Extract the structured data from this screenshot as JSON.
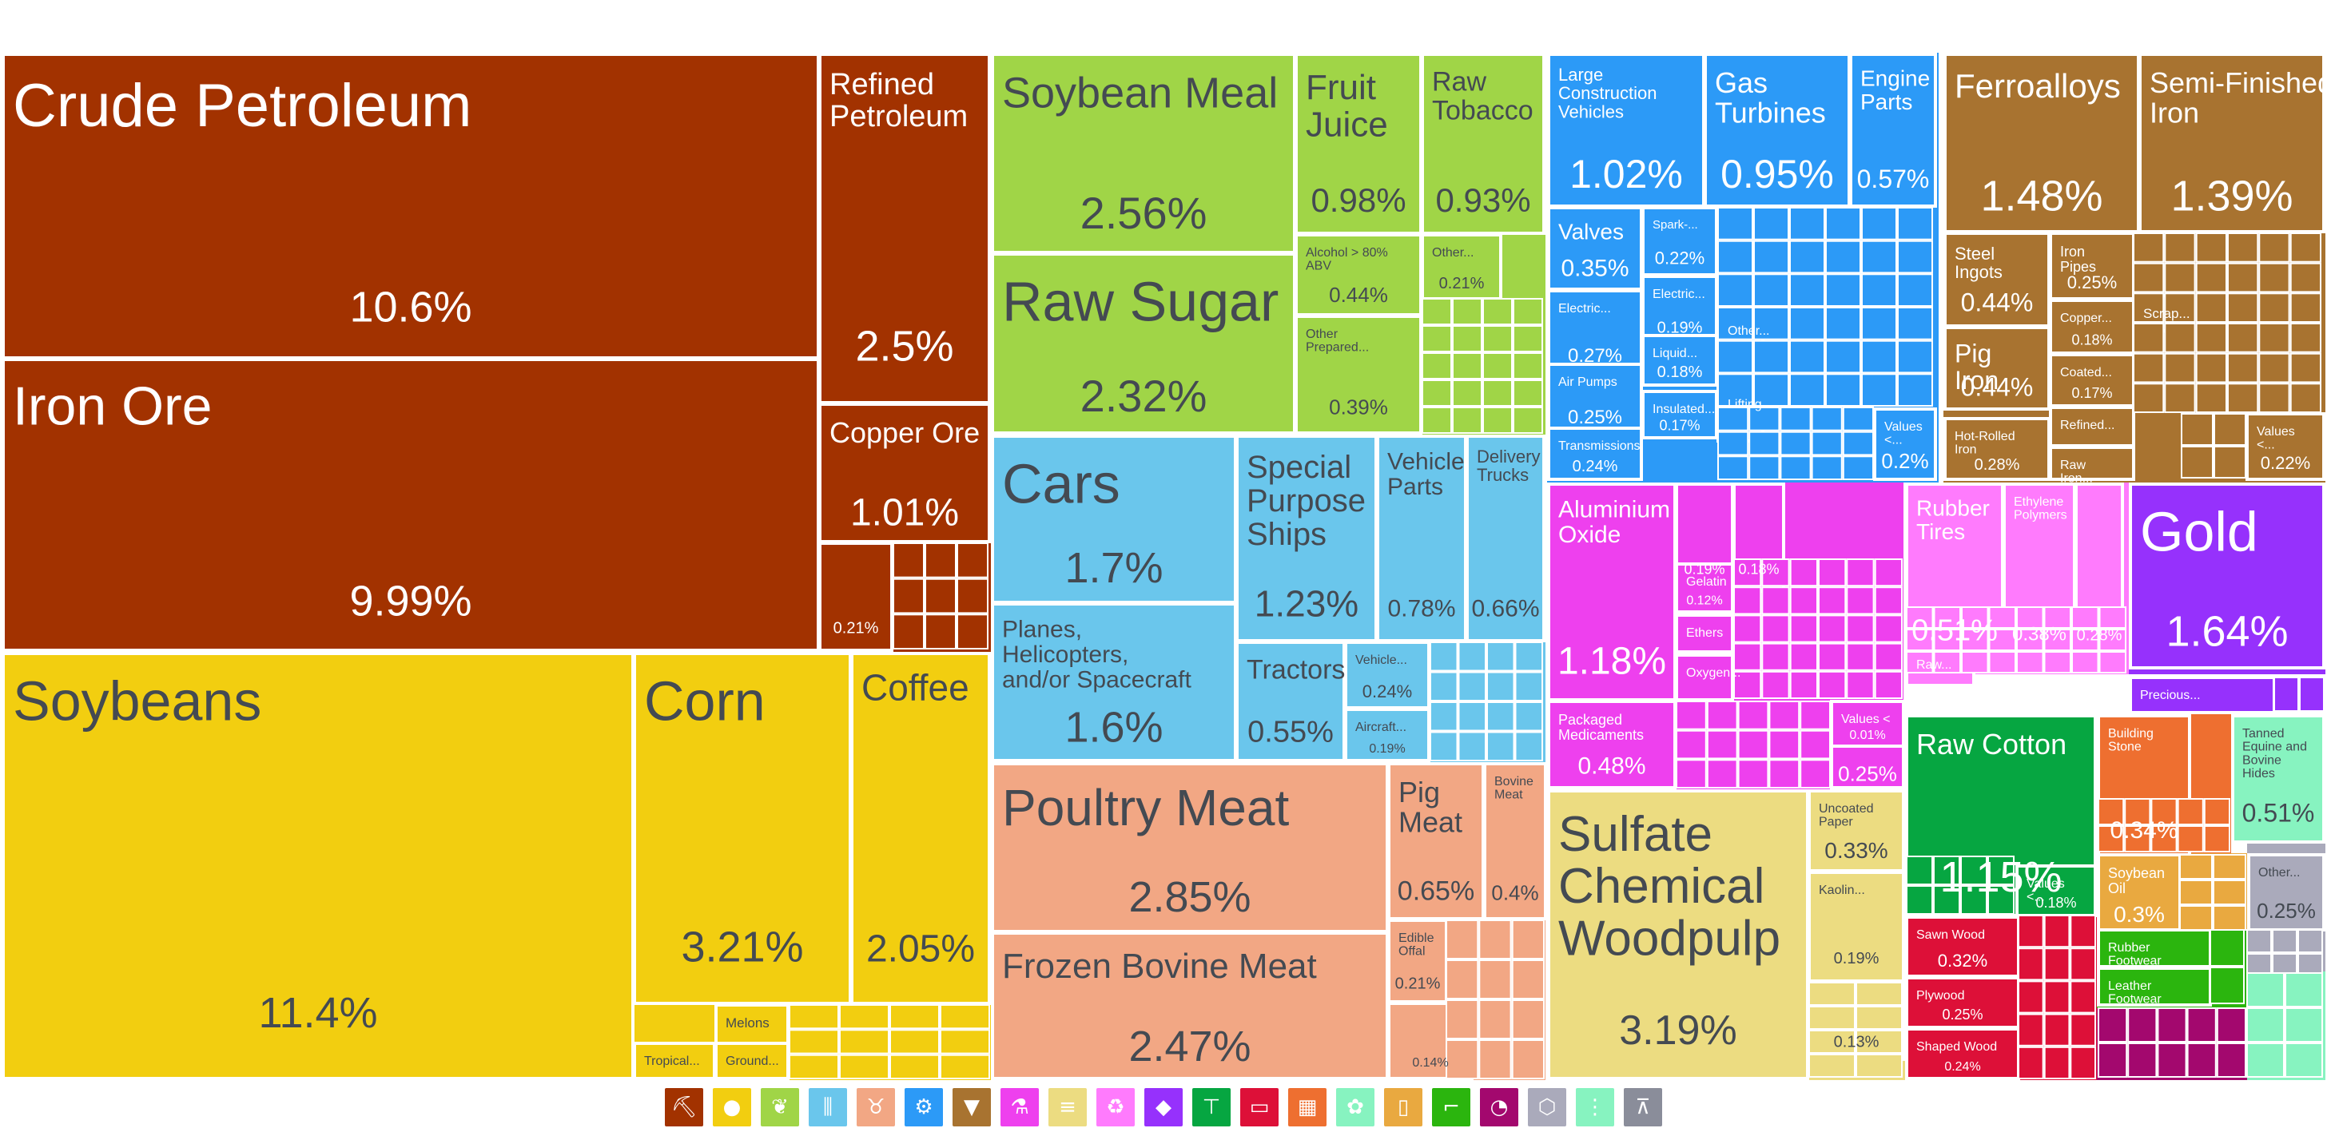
{
  "chart_data": {
    "type": "treemap",
    "title": "",
    "colors": {
      "minerals": "#a23200",
      "vegetable": "#f2ce10",
      "foodstuffs": "#a0d547",
      "transportation": "#6ac6ec",
      "animal": "#f2a784",
      "machines": "#2c9af7",
      "metals": "#a87330",
      "chemicals": "#ee40ee",
      "paper": "#ecdc81",
      "plastics": "#ff7bfd",
      "precious": "#9631fc",
      "textiles": "#06a641",
      "instruments": "#dd1038",
      "stone": "#ee6f30",
      "animal_hides": "#87f3c0",
      "misc": "#aaaabb",
      "oils": "#e9a940",
      "footwear": "#2bb50e",
      "wood": "#a3086e",
      "arts": "#8a8d9a",
      "weapons": "#8f8d9a"
    },
    "tiles": [
      {
        "name": "Crude Petroleum",
        "value": "10.6%",
        "group": "minerals"
      },
      {
        "name": "Iron Ore",
        "value": "9.99%",
        "group": "minerals"
      },
      {
        "name": "Refined Petroleum",
        "value": "2.5%",
        "group": "minerals"
      },
      {
        "name": "Copper Ore",
        "value": "1.01%",
        "group": "minerals"
      },
      {
        "name": "",
        "value": "0.21%",
        "group": "minerals"
      },
      {
        "name": "Soybeans",
        "value": "11.4%",
        "group": "vegetable"
      },
      {
        "name": "Corn",
        "value": "3.21%",
        "group": "vegetable"
      },
      {
        "name": "Coffee",
        "value": "2.05%",
        "group": "vegetable"
      },
      {
        "name": "Melons",
        "value": "",
        "group": "vegetable"
      },
      {
        "name": "Tropical...",
        "value": "",
        "group": "vegetable"
      },
      {
        "name": "Ground...",
        "value": "",
        "group": "vegetable"
      },
      {
        "name": "Soybean Meal",
        "value": "2.56%",
        "group": "foodstuffs"
      },
      {
        "name": "Raw Sugar",
        "value": "2.32%",
        "group": "foodstuffs"
      },
      {
        "name": "Fruit Juice",
        "value": "0.98%",
        "group": "foodstuffs"
      },
      {
        "name": "Raw Tobacco",
        "value": "0.93%",
        "group": "foodstuffs"
      },
      {
        "name": "Alcohol > 80% ABV",
        "value": "0.44%",
        "group": "foodstuffs"
      },
      {
        "name": "Other...",
        "value": "0.21%",
        "group": "foodstuffs"
      },
      {
        "name": "Other Prepared...",
        "value": "0.39%",
        "group": "foodstuffs"
      },
      {
        "name": "Cars",
        "value": "1.7%",
        "group": "transportation"
      },
      {
        "name": "Planes, Helicopters, and/or Spacecraft",
        "value": "1.6%",
        "group": "transportation"
      },
      {
        "name": "Special Purpose Ships",
        "value": "1.23%",
        "group": "transportation"
      },
      {
        "name": "Vehicle Parts",
        "value": "0.78%",
        "group": "transportation"
      },
      {
        "name": "Delivery Trucks",
        "value": "0.66%",
        "group": "transportation"
      },
      {
        "name": "Tractors",
        "value": "0.55%",
        "group": "transportation"
      },
      {
        "name": "Vehicle...",
        "value": "0.24%",
        "group": "transportation"
      },
      {
        "name": "Aircraft...",
        "value": "0.19%",
        "group": "transportation"
      },
      {
        "name": "Poultry Meat",
        "value": "2.85%",
        "group": "animal"
      },
      {
        "name": "Frozen Bovine Meat",
        "value": "2.47%",
        "group": "animal"
      },
      {
        "name": "Pig Meat",
        "value": "0.65%",
        "group": "animal"
      },
      {
        "name": "Bovine Meat",
        "value": "0.4%",
        "group": "animal"
      },
      {
        "name": "Edible Offal",
        "value": "0.21%",
        "group": "animal"
      },
      {
        "name": "",
        "value": "0.14%",
        "group": "animal"
      },
      {
        "name": "Large Construction Vehicles",
        "value": "1.02%",
        "group": "machines"
      },
      {
        "name": "Gas Turbines",
        "value": "0.95%",
        "group": "machines"
      },
      {
        "name": "Engine Parts",
        "value": "0.57%",
        "group": "machines"
      },
      {
        "name": "Valves",
        "value": "0.35%",
        "group": "machines"
      },
      {
        "name": "Spark-...",
        "value": "0.22%",
        "group": "machines"
      },
      {
        "name": "Electric...",
        "value": "0.19%",
        "group": "machines"
      },
      {
        "name": "Electric...",
        "value": "0.27%",
        "group": "machines"
      },
      {
        "name": "Liquid...",
        "value": "0.18%",
        "group": "machines"
      },
      {
        "name": "Air Pumps",
        "value": "0.25%",
        "group": "machines"
      },
      {
        "name": "Insulated...",
        "value": "0.17%",
        "group": "machines"
      },
      {
        "name": "Transmissions",
        "value": "0.24%",
        "group": "machines"
      },
      {
        "name": "Other...",
        "value": "",
        "group": "machines"
      },
      {
        "name": "Lifting...",
        "value": "",
        "group": "machines"
      },
      {
        "name": "Values <...",
        "value": "0.2%",
        "group": "machines"
      },
      {
        "name": "Ferroalloys",
        "value": "1.48%",
        "group": "metals"
      },
      {
        "name": "Semi-Finished Iron",
        "value": "1.39%",
        "group": "metals"
      },
      {
        "name": "Steel Ingots",
        "value": "0.44%",
        "group": "metals"
      },
      {
        "name": "Iron Pipes",
        "value": "0.25%",
        "group": "metals"
      },
      {
        "name": "Copper...",
        "value": "0.18%",
        "group": "metals"
      },
      {
        "name": "Pig Iron",
        "value": "0.44%",
        "group": "metals"
      },
      {
        "name": "Coated...",
        "value": "0.17%",
        "group": "metals"
      },
      {
        "name": "Refined...",
        "value": "",
        "group": "metals"
      },
      {
        "name": "Hot-Rolled Iron",
        "value": "0.28%",
        "group": "metals"
      },
      {
        "name": "Raw Iron...",
        "value": "",
        "group": "metals"
      },
      {
        "name": "Scrap...",
        "value": "",
        "group": "metals"
      },
      {
        "name": "Values <...",
        "value": "0.22%",
        "group": "metals"
      },
      {
        "name": "Aluminium Oxide",
        "value": "1.18%",
        "group": "chemicals"
      },
      {
        "name": "Packaged Medicaments",
        "value": "0.48%",
        "group": "chemicals"
      },
      {
        "name": "",
        "value": "0.19%",
        "group": "chemicals"
      },
      {
        "name": "",
        "value": "0.18%",
        "group": "chemicals"
      },
      {
        "name": "Gelatin",
        "value": "0.12%",
        "group": "chemicals"
      },
      {
        "name": "Ethers",
        "value": "",
        "group": "chemicals"
      },
      {
        "name": "Oxygen...",
        "value": "",
        "group": "chemicals"
      },
      {
        "name": "Values <",
        "value": "0.01%",
        "group": "chemicals"
      },
      {
        "name": "",
        "value": "0.25%",
        "group": "chemicals"
      },
      {
        "name": "Sulfate Chemical Woodpulp",
        "value": "3.19%",
        "group": "paper"
      },
      {
        "name": "Uncoated Paper",
        "value": "0.33%",
        "group": "paper"
      },
      {
        "name": "Kaolin...",
        "value": "0.19%",
        "group": "paper"
      },
      {
        "name": "",
        "value": "0.13%",
        "group": "paper"
      },
      {
        "name": "Rubber Tires",
        "value": "0.51%",
        "group": "plastics"
      },
      {
        "name": "Ethylene Polymers",
        "value": "0.38%",
        "group": "plastics"
      },
      {
        "name": "",
        "value": "0.28%",
        "group": "plastics"
      },
      {
        "name": "Raw...",
        "value": "",
        "group": "plastics"
      },
      {
        "name": "Gold",
        "value": "1.64%",
        "group": "precious"
      },
      {
        "name": "Precious...",
        "value": "",
        "group": "precious"
      },
      {
        "name": "Raw Cotton",
        "value": "1.15%",
        "group": "textiles"
      },
      {
        "name": "Values <...",
        "value": "0.18%",
        "group": "textiles"
      },
      {
        "name": "Building Stone",
        "value": "0.34%",
        "group": "stone"
      },
      {
        "name": "Tanned Equine and Bovine Hides",
        "value": "0.51%",
        "group": "animal_hides"
      },
      {
        "name": "Other...",
        "value": "0.25%",
        "group": "misc"
      },
      {
        "name": "Soybean Oil",
        "value": "0.3%",
        "group": "oils"
      },
      {
        "name": "Sawn Wood",
        "value": "0.32%",
        "group": "instruments"
      },
      {
        "name": "Plywood",
        "value": "0.25%",
        "group": "instruments"
      },
      {
        "name": "Shaped Wood",
        "value": "0.24%",
        "group": "instruments"
      },
      {
        "name": "Rubber Footwear",
        "value": "",
        "group": "footwear"
      },
      {
        "name": "Leather Footwear",
        "value": "",
        "group": "footwear"
      }
    ],
    "legend": [
      {
        "icon": "pickaxe-icon",
        "glyph": "⛏",
        "color": "#a23200"
      },
      {
        "icon": "fruit-icon",
        "glyph": "●",
        "color": "#f2ce10"
      },
      {
        "icon": "wheat-icon",
        "glyph": "❦",
        "color": "#a0d547"
      },
      {
        "icon": "road-icon",
        "glyph": "⫼",
        "color": "#6ac6ec"
      },
      {
        "icon": "cow-icon",
        "glyph": "♉",
        "color": "#f2a784"
      },
      {
        "icon": "gear-icon",
        "glyph": "⚙",
        "color": "#2c9af7"
      },
      {
        "icon": "anvil-icon",
        "glyph": "▼",
        "color": "#a87330"
      },
      {
        "icon": "flask-icon",
        "glyph": "⚗",
        "color": "#ee40ee"
      },
      {
        "icon": "scroll-icon",
        "glyph": "≡",
        "color": "#ecdc81"
      },
      {
        "icon": "recycle-icon",
        "glyph": "♻",
        "color": "#ff7bfd"
      },
      {
        "icon": "gem-icon",
        "glyph": "◆",
        "color": "#9631fc"
      },
      {
        "icon": "shirt-icon",
        "glyph": "⊤",
        "color": "#06a641"
      },
      {
        "icon": "ticket-icon",
        "glyph": "▭",
        "color": "#dd1038"
      },
      {
        "icon": "brick-icon",
        "glyph": "▦",
        "color": "#ee6f30"
      },
      {
        "icon": "hide-icon",
        "glyph": "✿",
        "color": "#87f3c0"
      },
      {
        "icon": "jar-icon",
        "glyph": "▯",
        "color": "#e9a940"
      },
      {
        "icon": "shoe-icon",
        "glyph": "⌐",
        "color": "#2bb50e"
      },
      {
        "icon": "gauge-icon",
        "glyph": "◔",
        "color": "#a3086e"
      },
      {
        "icon": "box-icon",
        "glyph": "⬡",
        "color": "#aaaabb"
      },
      {
        "icon": "bullets-icon",
        "glyph": "⋮",
        "color": "#87f3c0"
      },
      {
        "icon": "easel-icon",
        "glyph": "⊼",
        "color": "#8a8d9a"
      }
    ]
  }
}
